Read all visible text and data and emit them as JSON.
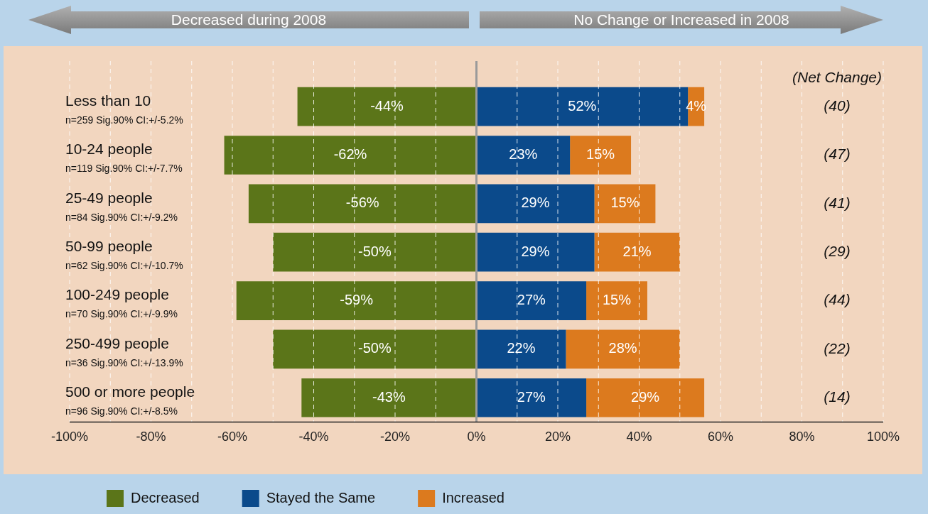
{
  "chart_data": {
    "type": "bar",
    "orientation": "horizontal",
    "stacked": true,
    "categories": [
      "Less than 10\nn=259 Sig.90% CI:+/-5.2%",
      "10-24 people\nn=119 Sig.90% CI:+/-7.7%",
      "25-49 people\nn=84 Sig.90% CI:+/-9.2%",
      "50-99 people\nn=62 Sig.90% CI:+/-10.7%",
      "100-249 people\nn=70 Sig.90% CI:+/-9.9%",
      "250-499 people\nn=36 Sig.90% CI:+/-13.9%",
      "500 or more people\nn=96 Sig.90% CI:+/-8.5%"
    ],
    "series": [
      {
        "name": "Decreased",
        "color": "#5b7519",
        "values": [
          -44,
          -62,
          -56,
          -50,
          -59,
          -50,
          -43
        ]
      },
      {
        "name": "Stayed the Same",
        "color": "#0b4a8b",
        "values": [
          52,
          23,
          29,
          29,
          27,
          22,
          27
        ]
      },
      {
        "name": "Increased",
        "color": "#dc7a1e",
        "values": [
          4,
          15,
          15,
          21,
          15,
          28,
          29
        ]
      }
    ],
    "value_labels": [
      [
        "-44%",
        "-62%",
        "-56%",
        "-50%",
        "-59%",
        "-50%",
        "-43%"
      ],
      [
        "52%",
        "23%",
        "29%",
        "29%",
        "27%",
        "22%",
        "27%"
      ],
      [
        "4%",
        "15%",
        "15%",
        "21%",
        "15%",
        "28%",
        "29%"
      ]
    ],
    "xlim": [
      -100,
      100
    ],
    "xticks": [
      {
        "value": -100,
        "label": "-100%"
      },
      {
        "value": -90,
        "label": null
      },
      {
        "value": -80,
        "label": "-80%"
      },
      {
        "value": -70,
        "label": null
      },
      {
        "value": -60,
        "label": "-60%"
      },
      {
        "value": -50,
        "label": null
      },
      {
        "value": -40,
        "label": "-40%"
      },
      {
        "value": -30,
        "label": null
      },
      {
        "value": -20,
        "label": "-20%"
      },
      {
        "value": -10,
        "label": null
      },
      {
        "value": 0,
        "label": "0%"
      },
      {
        "value": 10,
        "label": null
      },
      {
        "value": 20,
        "label": "20%"
      },
      {
        "value": 30,
        "label": null
      },
      {
        "value": 40,
        "label": "40%"
      },
      {
        "value": 50,
        "label": null
      },
      {
        "value": 60,
        "label": "60%"
      },
      {
        "value": 70,
        "label": null
      },
      {
        "value": 80,
        "label": "80%"
      },
      {
        "value": 90,
        "label": null
      },
      {
        "value": 100,
        "label": "100%"
      }
    ],
    "ref_lines": [
      {
        "axis": "x",
        "value": 0,
        "color": "#9a9a9a"
      }
    ],
    "grid": "x",
    "legend": "bottom left",
    "annotations": [
      "Decreased during 2008",
      "No Change or Increased in 2008",
      "(Net Change)",
      "(40)",
      "(47)",
      "(41)",
      "(29)",
      "(44)",
      "(22)",
      "(14)"
    ]
  }
}
